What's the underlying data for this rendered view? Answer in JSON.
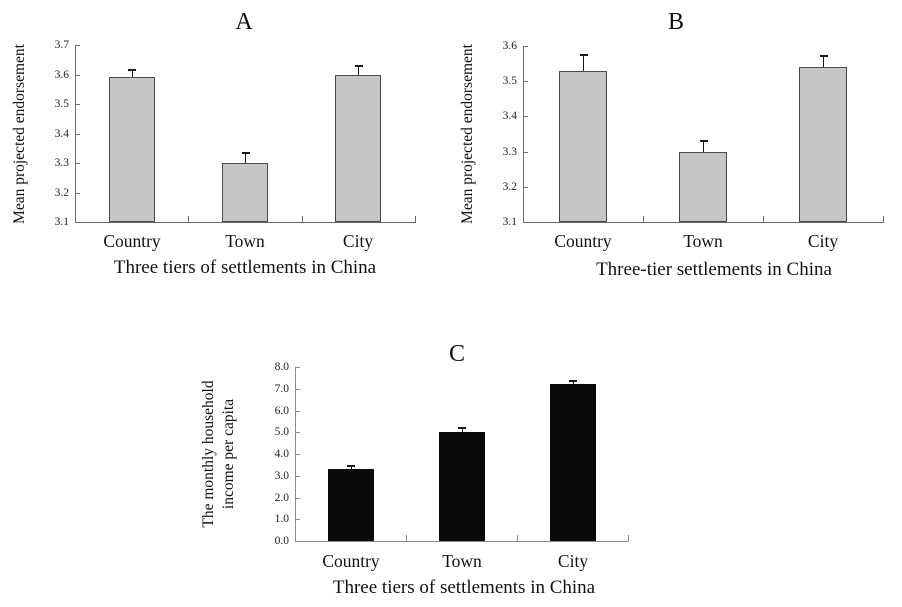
{
  "figure": {
    "background": "#ffffff",
    "description_visible_panels": [
      "A",
      "B",
      "C"
    ]
  },
  "chart_data": [
    {
      "id": "A",
      "type": "bar",
      "title": "A",
      "categories": [
        "Country",
        "Town",
        "City"
      ],
      "values": [
        3.59,
        3.3,
        3.6
      ],
      "errors_plus": [
        0.025,
        0.035,
        0.03
      ],
      "xlabel": "Three tiers of settlements in China",
      "ylabel": "Mean projected endorsement",
      "ylim": [
        3.1,
        3.7
      ],
      "ytick_step": 0.1,
      "ytick_labels": [
        "3.1",
        "3.2",
        "3.3",
        "3.4",
        "3.5",
        "3.6",
        "3.7"
      ],
      "bar_color": "#c6c6c6",
      "bar_border_color": "#4a4a4a",
      "error_color": "#1a1a1a",
      "axis_color": "#6a6a6a",
      "grid": false,
      "legend": null
    },
    {
      "id": "B",
      "type": "bar",
      "title": "B",
      "categories": [
        "Country",
        "Town",
        "City"
      ],
      "values": [
        3.53,
        3.3,
        3.54
      ],
      "errors_plus": [
        0.045,
        0.03,
        0.03
      ],
      "xlabel": "Three-tier settlements in China",
      "ylabel": "Mean projected endorsement",
      "ylim": [
        3.1,
        3.6
      ],
      "ytick_step": 0.1,
      "ytick_labels": [
        "3.1",
        "3.2",
        "3.3",
        "3.4",
        "3.5",
        "3.6"
      ],
      "bar_color": "#c6c6c6",
      "bar_border_color": "#4a4a4a",
      "error_color": "#1a1a1a",
      "axis_color": "#6a6a6a",
      "grid": false,
      "legend": null
    },
    {
      "id": "C",
      "type": "bar",
      "title": "C",
      "categories": [
        "Country",
        "Town",
        "City"
      ],
      "values": [
        3.3,
        5.0,
        7.2
      ],
      "errors_plus": [
        0.15,
        0.2,
        0.15
      ],
      "xlabel": "Three tiers of settlements in China",
      "ylabel": "The monthly household income per capita",
      "ylabel_lines": [
        "The monthly household",
        "income  per capita"
      ],
      "ylim": [
        0,
        8
      ],
      "ytick_step": 1,
      "ytick_labels": [
        "0.0",
        "1.0",
        "2.0",
        "3.0",
        "4.0",
        "5.0",
        "6.0",
        "7.0",
        "8.0"
      ],
      "bar_color": "#0a0a0a",
      "bar_border_color": "#0a0a0a",
      "error_color": "#1a1a1a",
      "axis_color": "#8a8a8a",
      "grid": false,
      "legend": null
    }
  ]
}
